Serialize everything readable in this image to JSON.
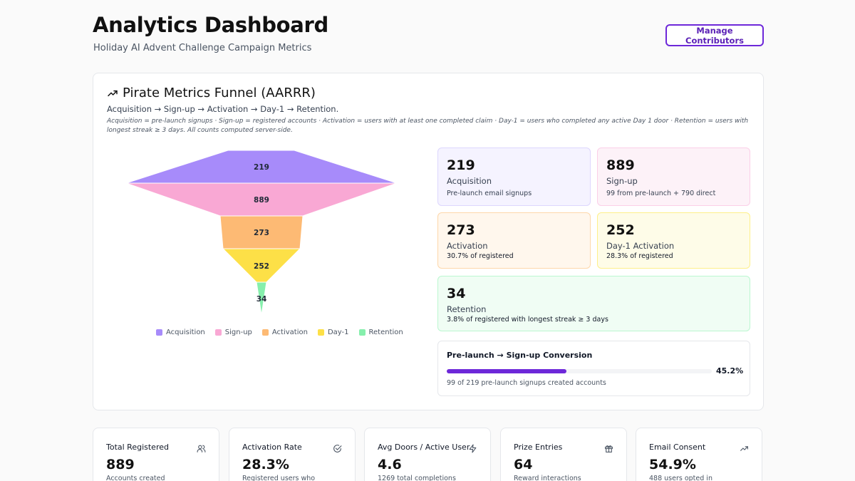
{
  "header": {
    "title": "Analytics Dashboard",
    "subtitle": "Holiday AI Advent Challenge Campaign Metrics",
    "manage_button": "Manage Contributors"
  },
  "funnel_card": {
    "title": "Pirate Metrics Funnel (AARRR)",
    "title_icon": "trending-up-icon",
    "description": "Acquisition → Sign-up → Activation → Day-1 → Retention.",
    "note": "Acquisition = pre-launch signups · Sign-up = registered accounts · Activation = users with at least one completed claim · Day-1 = users who completed any active Day 1 door · Retention = users with longest streak ≥ 3 days. All counts computed server-side.",
    "funnel": [
      {
        "name": "Acquisition",
        "value": "219",
        "color": "#a78bfa"
      },
      {
        "name": "Sign-up",
        "value": "889",
        "color": "#f9a8d4"
      },
      {
        "name": "Activation",
        "value": "273",
        "color": "#fdba74"
      },
      {
        "name": "Day-1",
        "value": "252",
        "color": "#fde047"
      },
      {
        "name": "Retention",
        "value": "34",
        "color": "#86efac"
      }
    ],
    "metrics": [
      {
        "value": "219",
        "label": "Acquisition",
        "sub": "Pre-launch email signups",
        "bg": "#f5f3ff",
        "border": "#ddd6fe"
      },
      {
        "value": "889",
        "label": "Sign-up",
        "sub": "99 from pre-launch + 790 direct",
        "bg": "#fdf2f8",
        "border": "#fbcfe8"
      },
      {
        "value": "273",
        "label": "Activation",
        "sub": "30.7% of registered",
        "bg": "#fff7ed",
        "border": "#fed7aa"
      },
      {
        "value": "252",
        "label": "Day-1 Activation",
        "sub": "28.3% of registered",
        "bg": "#fefce8",
        "border": "#fef08a"
      },
      {
        "value": "34",
        "label": "Retention",
        "sub": "3.8% of registered with longest streak ≥ 3 days",
        "bg": "#f0fdf4",
        "border": "#bbf7d0"
      }
    ],
    "conversion": {
      "title": "Pre-launch → Sign-up Conversion",
      "percent_label": "45.2%",
      "percent": 45.2,
      "note": "99 of 219 pre-launch signups created accounts"
    }
  },
  "stats": [
    {
      "label": "Total Registered",
      "value": "889",
      "sub": "Accounts created",
      "icon": "users-icon"
    },
    {
      "label": "Activation Rate",
      "value": "28.3%",
      "sub": "Registered users who",
      "icon": "check-circle-icon"
    },
    {
      "label": "Avg Doors / Active User",
      "value": "4.6",
      "sub": "1269 total completions",
      "icon": "lightning-icon"
    },
    {
      "label": "Prize Entries",
      "value": "64",
      "sub": "Reward interactions",
      "icon": "gift-icon"
    },
    {
      "label": "Email Consent",
      "value": "54.9%",
      "sub": "488 users opted in",
      "icon": "trending-up-icon"
    }
  ]
}
